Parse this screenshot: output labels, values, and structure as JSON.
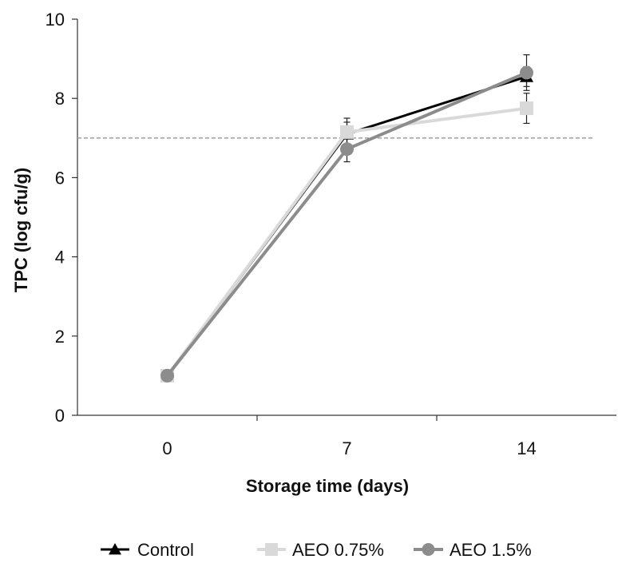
{
  "chart_data": {
    "type": "line",
    "title": "",
    "xlabel": "Storage time (days)",
    "ylabel": "TPC (log cfu/g)",
    "categories": [
      "0",
      "7",
      "14"
    ],
    "ylim": [
      0,
      10
    ],
    "yticks": [
      0,
      2,
      4,
      6,
      8,
      10
    ],
    "reference_line": {
      "y": 7,
      "style": "dashed",
      "color": "#a6a6a6"
    },
    "legend_position": "bottom",
    "series": [
      {
        "name": "Control",
        "color": "#000000",
        "marker": "triangle",
        "values": [
          1.0,
          7.1,
          8.55
        ],
        "error": [
          0,
          0.3,
          0.25
        ]
      },
      {
        "name": "AEO 0.75%",
        "color": "#d9d9d9",
        "marker": "square",
        "values": [
          1.0,
          7.15,
          7.75
        ],
        "error": [
          0,
          0.35,
          0.38
        ]
      },
      {
        "name": "AEO 1.5%",
        "color": "#8c8c8c",
        "marker": "circle",
        "values": [
          1.0,
          6.72,
          8.65
        ],
        "error": [
          0,
          0.32,
          0.45
        ]
      }
    ]
  }
}
